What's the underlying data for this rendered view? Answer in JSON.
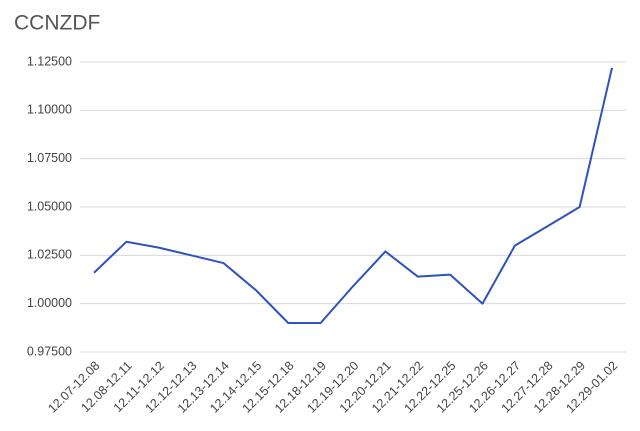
{
  "chart_data": {
    "type": "line",
    "title": "CCNZDF",
    "categories": [
      "12.07-12.08",
      "12.08-12.11",
      "12.11-12.12",
      "12.12-12.13",
      "12.13-12.14",
      "12.14-12.15",
      "12.15-12.18",
      "12.18-12.19",
      "12.19-12.20",
      "12.20-12.21",
      "12.21-12.22",
      "12.22-12.25",
      "12.25-12.26",
      "12.26-12.27",
      "12.27-12.28",
      "12.28-12.29",
      "12.29-01.02"
    ],
    "values": [
      1.016,
      1.032,
      1.029,
      1.025,
      1.021,
      1.007,
      0.99,
      0.99,
      1.009,
      1.027,
      1.014,
      1.015,
      1.0,
      1.03,
      1.04,
      1.05,
      1.122
    ],
    "color": "#2f52c0",
    "ylim": [
      0.975,
      1.125
    ],
    "yticks": [
      {
        "value": 0.975,
        "label": "0.97500"
      },
      {
        "value": 1.0,
        "label": "1.00000"
      },
      {
        "value": 1.025,
        "label": "1.02500"
      },
      {
        "value": 1.05,
        "label": "1.05000"
      },
      {
        "value": 1.075,
        "label": "1.07500"
      },
      {
        "value": 1.1,
        "label": "1.10000"
      },
      {
        "value": 1.125,
        "label": "1.12500"
      }
    ],
    "grid": true
  }
}
